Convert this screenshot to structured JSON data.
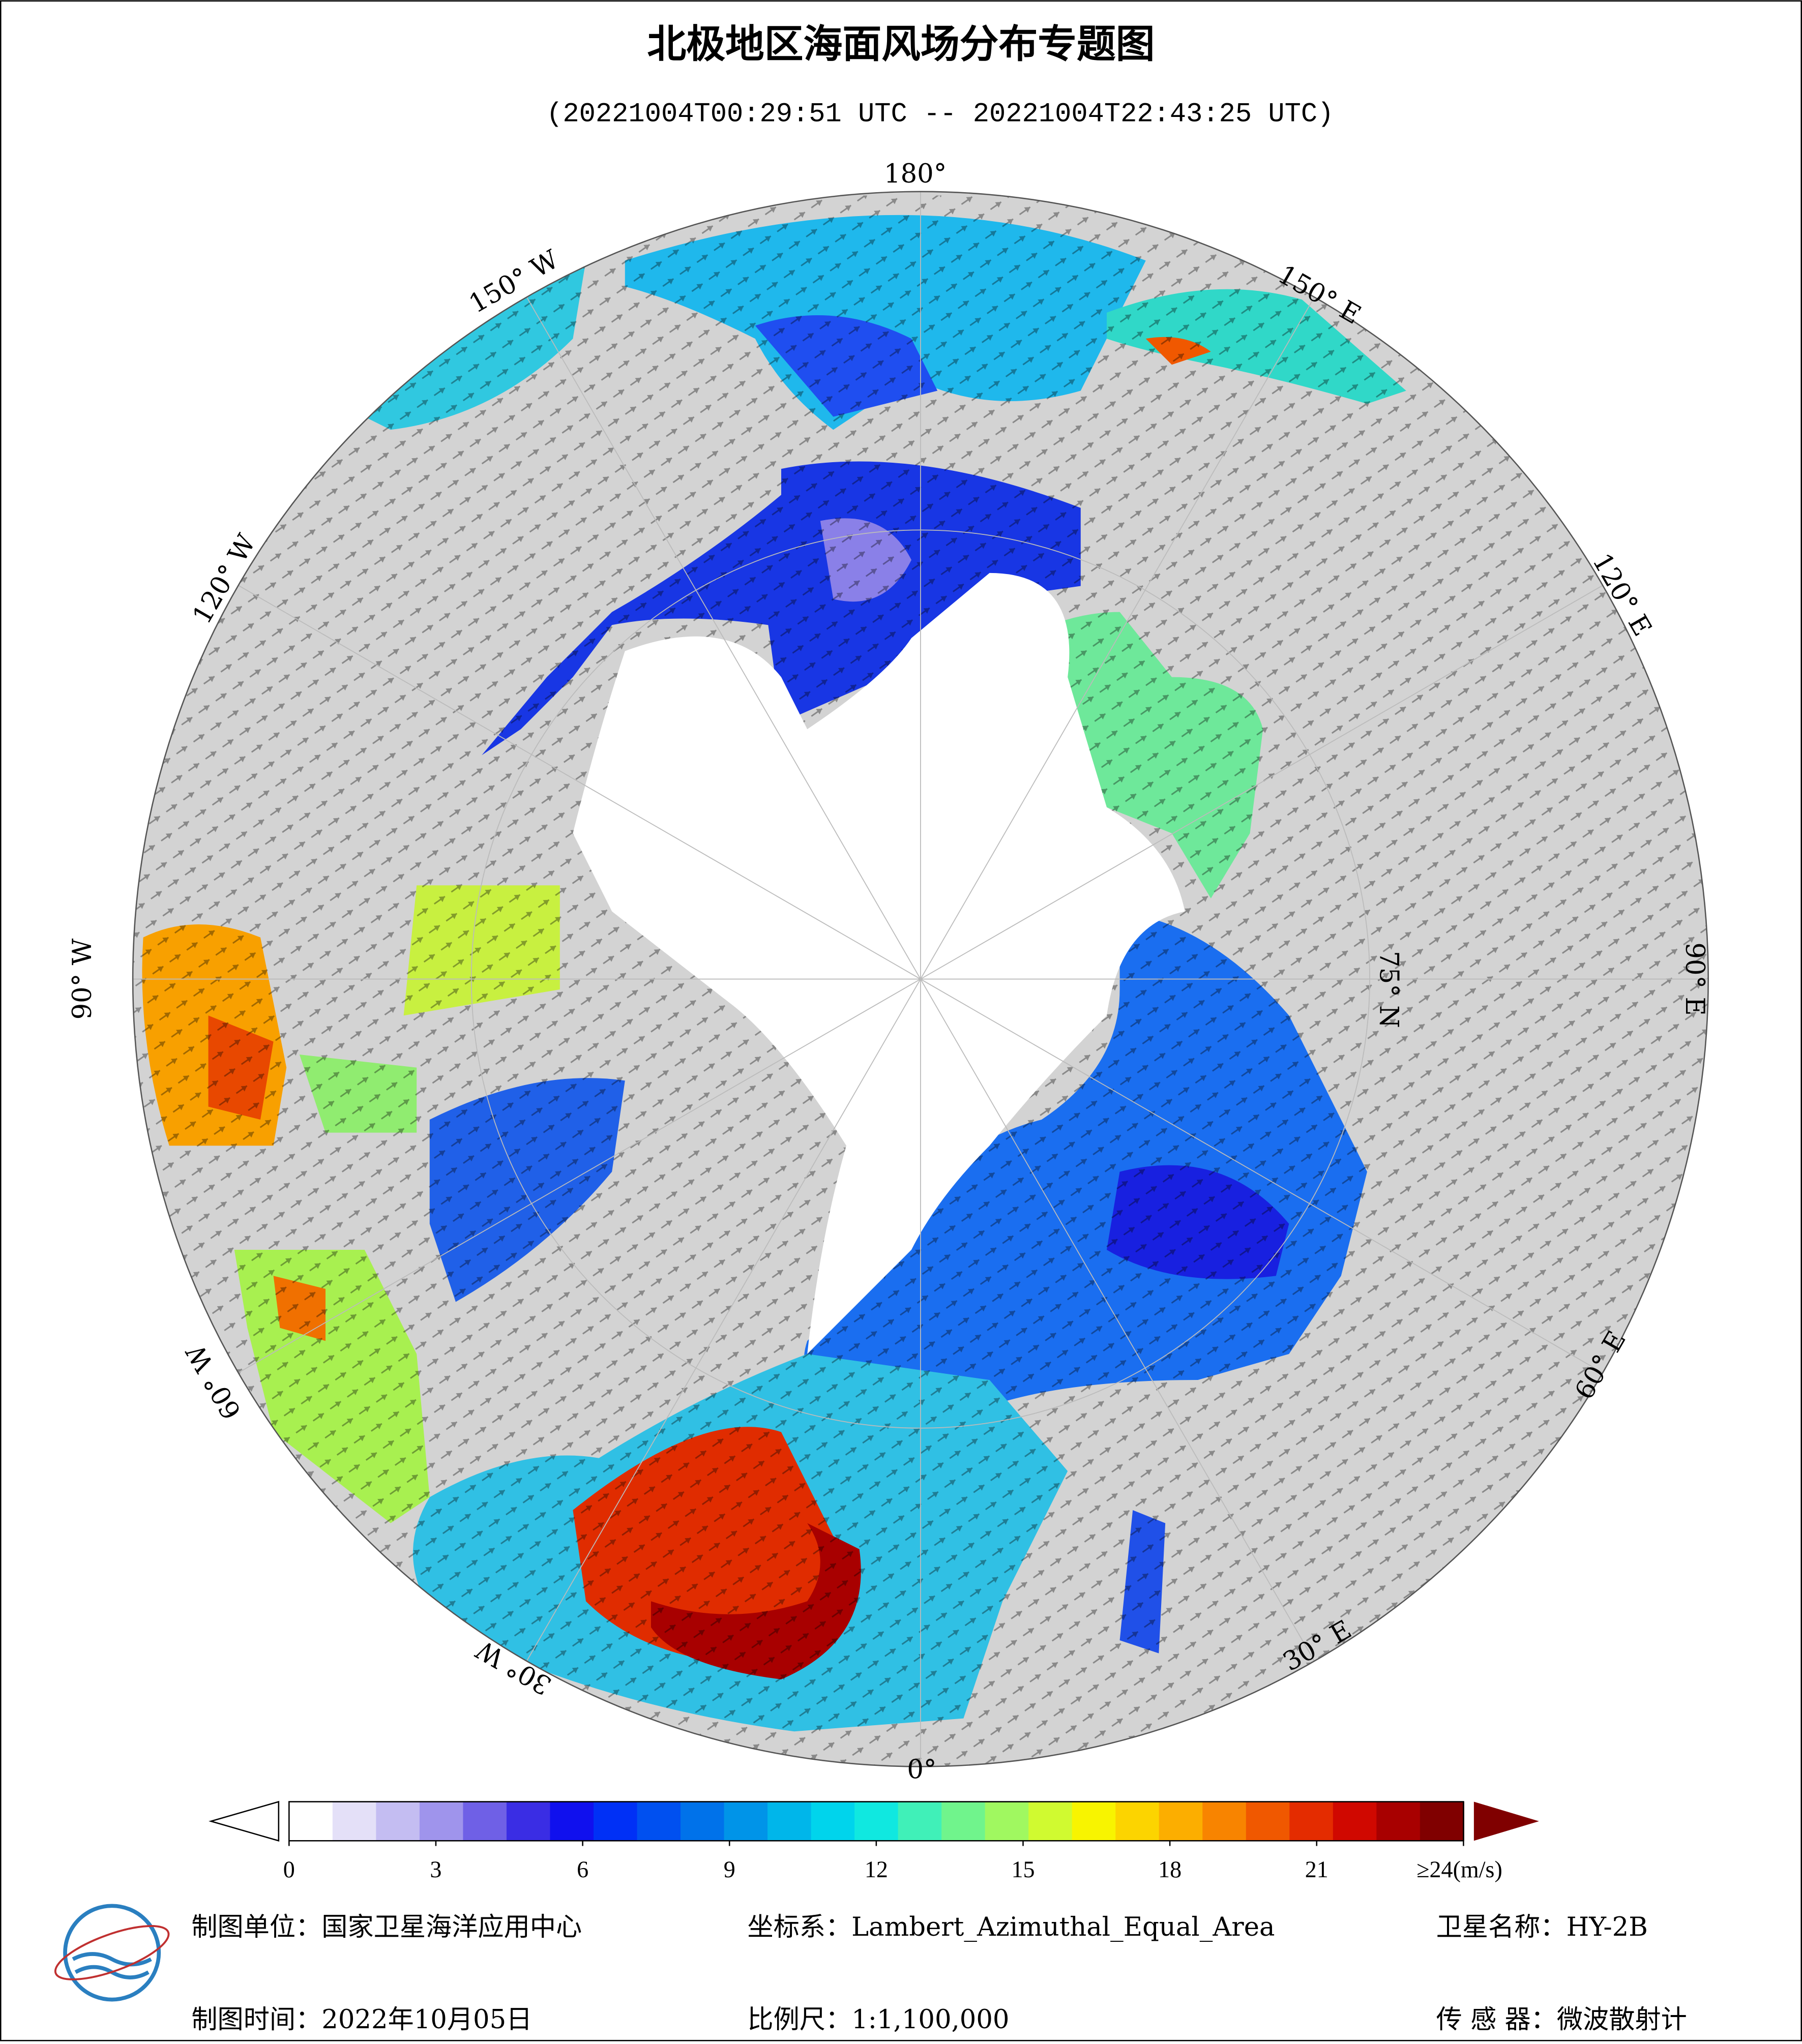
{
  "title": "北极地区海面风场分布专题图",
  "subtitle": "(20221004T00:29:51 UTC -- 20221004T22:43:25 UTC)",
  "graticule_labels": [
    "180°",
    "150° E",
    "120° E",
    "90° E",
    "60° E",
    "30° E",
    "0°",
    "30° W",
    "60° W",
    "90° W",
    "120° W",
    "150° W",
    "75° N"
  ],
  "colorbar": {
    "range": [
      0,
      24
    ],
    "ticks": [
      0,
      3,
      6,
      9,
      12,
      15,
      18,
      21,
      {
        "value": 24,
        "label": "≥24(m/s)"
      }
    ],
    "colors": [
      "#ffffff",
      "#e4e0f8",
      "#c4bdf2",
      "#9f94ec",
      "#6f60e6",
      "#3a2de4",
      "#1010ee",
      "#0030f6",
      "#0050f0",
      "#0072ea",
      "#0094e8",
      "#00b6ea",
      "#00d4ec",
      "#10e8e0",
      "#40f0b8",
      "#70f48c",
      "#a0f860",
      "#d0fa30",
      "#f8f400",
      "#fcd400",
      "#fcae00",
      "#f88400",
      "#f05800",
      "#e42c00",
      "#d00800",
      "#a80000",
      "#800000"
    ]
  },
  "footer": {
    "unit": "制图单位：国家卫星海洋应用中心",
    "crs": "坐标系：Lambert_Azimuthal_Equal_Area",
    "satellite": "卫星名称：HY-2B",
    "date": "制图时间：2022年10月05日",
    "scale": "比例尺：1:1,100,000",
    "sensor": "传 感 器：微波散射计"
  }
}
